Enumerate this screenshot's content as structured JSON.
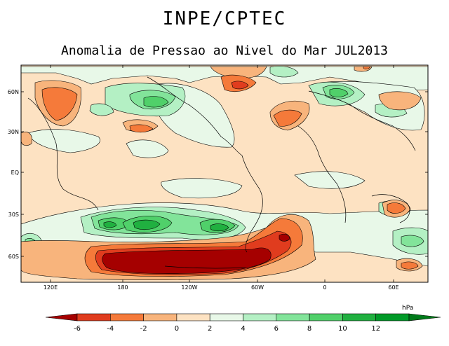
{
  "header": {
    "title": "INPE/CPTEC",
    "subtitle": "Anomalia de Pressao ao Nivel do Mar JUL2013"
  },
  "map": {
    "lat_ticks": [
      "60N",
      "30N",
      "EQ",
      "30S",
      "60S"
    ],
    "lon_ticks": [
      "120E",
      "180",
      "120W",
      "60W",
      "0",
      "60E"
    ]
  },
  "colorbar": {
    "unit": "hPa",
    "labels": [
      "-6",
      "-4",
      "-2",
      "0",
      "2",
      "4",
      "6",
      "8",
      "10",
      "12"
    ],
    "colors": [
      "#a50000",
      "#e03c1e",
      "#f57a3a",
      "#f8b47c",
      "#fde2c2",
      "#e8f8e8",
      "#b4f0c4",
      "#82e49a",
      "#50d06a",
      "#20b040",
      "#009a28",
      "#007a1a"
    ]
  },
  "palette": {
    "ocean_base": "#fde2c2",
    "light_green": "#e8f8e8",
    "green_2": "#b4f0c4",
    "green_3": "#82e49a",
    "green_4": "#50d06a",
    "green_5": "#20b040",
    "orange_1": "#f8b47c",
    "orange_2": "#f57a3a",
    "red_1": "#e03c1e",
    "red_2": "#a50000"
  }
}
